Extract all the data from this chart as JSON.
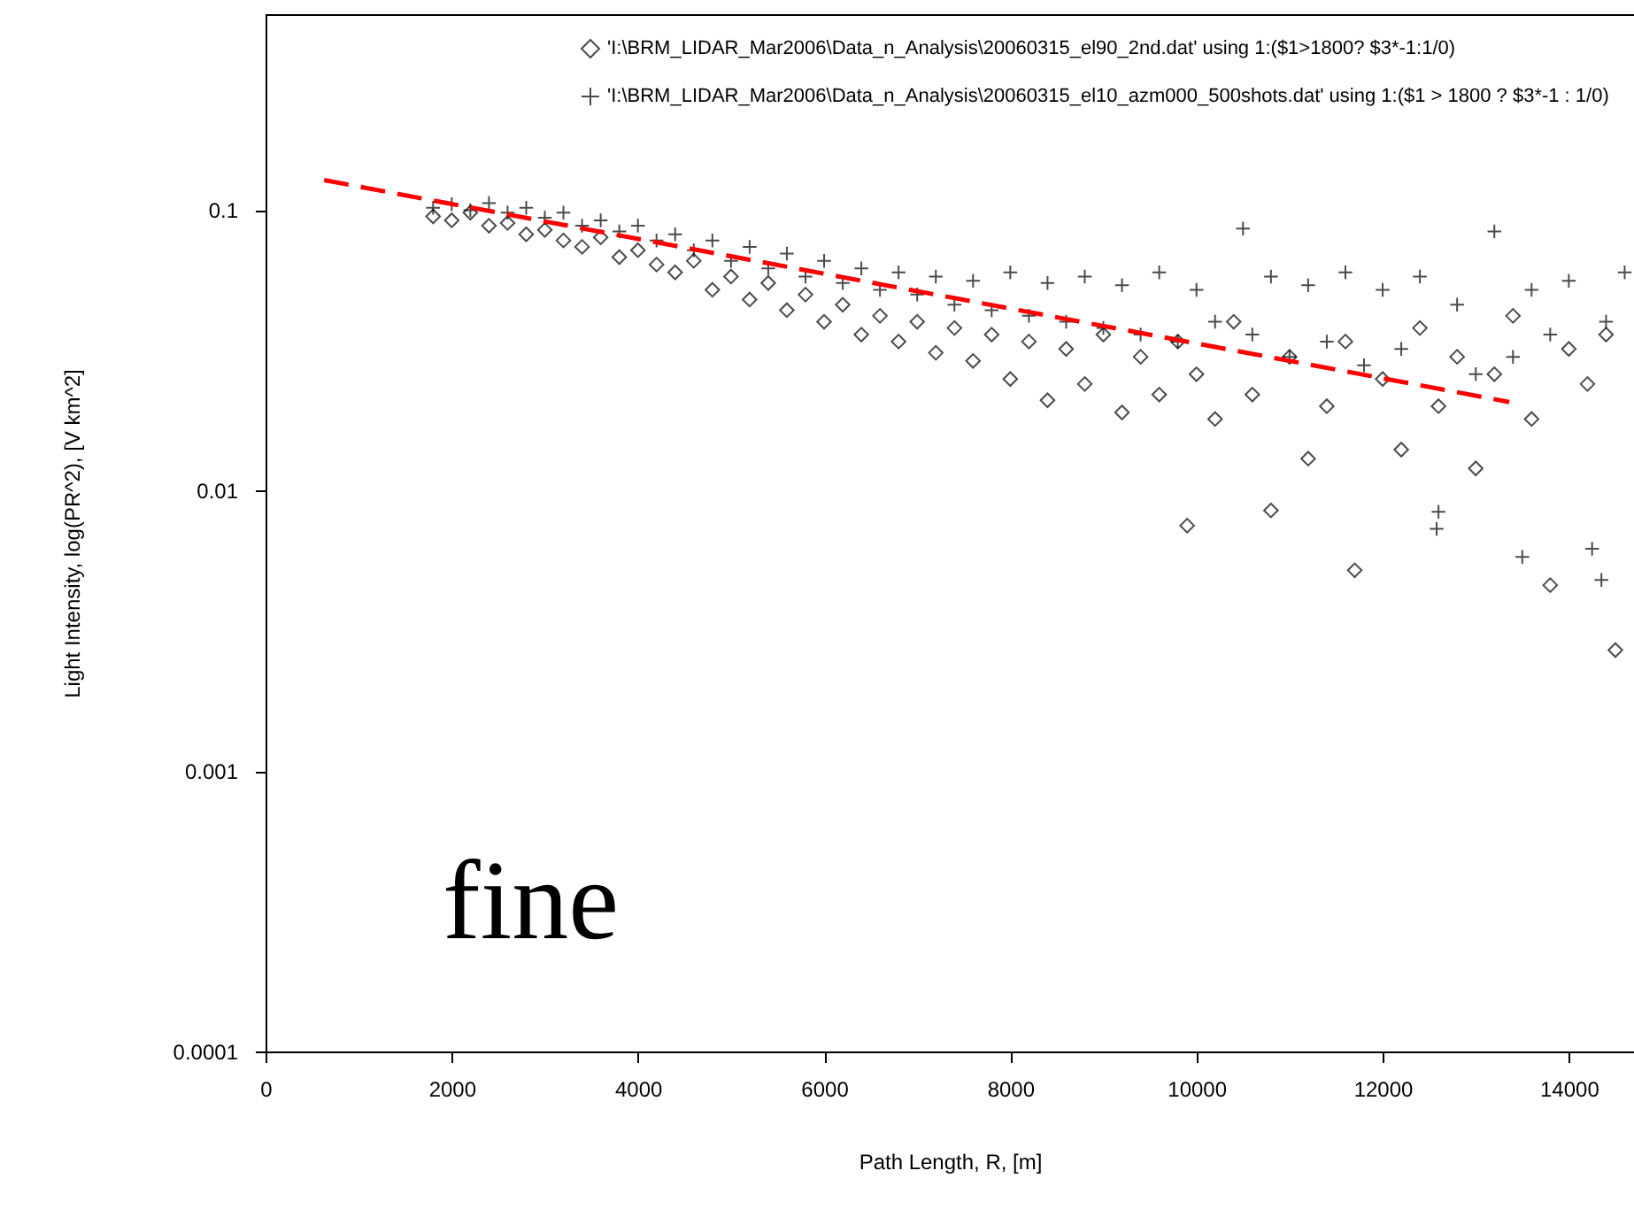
{
  "chart_data": {
    "type": "scatter",
    "xlabel": "Path Length,   R,    [m]",
    "ylabel": "Light Intensity, log(PR^2),       [V km^2]",
    "log": "y",
    "grid": false,
    "legend": "top right",
    "xlim": [
      0,
      14700
    ],
    "xticks": [
      0,
      2000,
      4000,
      6000,
      8000,
      10000,
      12000,
      14000
    ],
    "ylim": [
      0.0001,
      0.5
    ],
    "yticks": [
      0.0001,
      0.001,
      0.01,
      0.1
    ],
    "annotations": [
      "fine"
    ],
    "series": [
      {
        "name": "'I:\\BRM_LIDAR_Mar2006\\Data_n_Analysis\\20060315_el90_2nd.dat' using 1:($1>1800? $3*-1:1/0)",
        "color": "#000000",
        "marker": "diamond",
        "x": [
          1800,
          2000,
          2200,
          2400,
          2600,
          2800,
          3000,
          3200,
          3400,
          3600,
          3800,
          4000,
          4200,
          4400,
          4600,
          4800,
          5000,
          5200,
          5400,
          5600,
          5800,
          6000,
          6200,
          6400,
          6600,
          6800,
          7000,
          7200,
          7400,
          7600,
          7800,
          8000,
          8200,
          8400,
          8600,
          8800,
          9000,
          9200,
          9400,
          9600,
          9800,
          9900,
          10000,
          10200,
          10400,
          10600,
          10800,
          11000,
          11200,
          11400,
          11600,
          11700,
          12000,
          12200,
          12400,
          12600,
          12800,
          13000,
          13200,
          13400,
          13600,
          13800,
          14000,
          14200,
          14400,
          14500
        ],
        "values": [
          0.095,
          0.092,
          0.098,
          0.088,
          0.09,
          0.082,
          0.085,
          0.078,
          0.074,
          0.08,
          0.068,
          0.072,
          0.064,
          0.06,
          0.066,
          0.052,
          0.058,
          0.048,
          0.055,
          0.044,
          0.05,
          0.04,
          0.046,
          0.036,
          0.042,
          0.034,
          0.04,
          0.031,
          0.038,
          0.029,
          0.036,
          0.025,
          0.034,
          0.021,
          0.032,
          0.024,
          0.036,
          0.019,
          0.03,
          0.022,
          0.034,
          0.0075,
          0.026,
          0.018,
          0.04,
          0.022,
          0.0085,
          0.03,
          0.013,
          0.02,
          0.034,
          0.0052,
          0.025,
          0.014,
          0.038,
          0.02,
          0.03,
          0.012,
          0.026,
          0.042,
          0.018,
          0.0046,
          0.032,
          0.024,
          0.036,
          0.0027
        ]
      },
      {
        "name": "'I:\\BRM_LIDAR_Mar2006\\Data_n_Analysis\\20060315_el10_azm000_500shots.dat' using 1:($1 > 1800 ? $3*-1 : 1/0)",
        "color": "#000000",
        "marker": "cross",
        "x": [
          1800,
          2000,
          2200,
          2400,
          2600,
          2800,
          3000,
          3200,
          3400,
          3600,
          3800,
          4000,
          4200,
          4400,
          4600,
          4800,
          5000,
          5200,
          5400,
          5600,
          5800,
          6000,
          6200,
          6400,
          6600,
          6800,
          7000,
          7200,
          7400,
          7600,
          7800,
          8000,
          8200,
          8400,
          8600,
          8800,
          9000,
          9200,
          9400,
          9600,
          9800,
          10000,
          10200,
          10500,
          10600,
          10800,
          11000,
          11200,
          11400,
          11600,
          11800,
          12000,
          12200,
          12400,
          12580,
          12600,
          12800,
          13000,
          13200,
          13400,
          13500,
          13600,
          13800,
          14000,
          14250,
          14350,
          14400,
          14600
        ],
        "values": [
          0.102,
          0.105,
          0.1,
          0.106,
          0.098,
          0.102,
          0.094,
          0.098,
          0.088,
          0.092,
          0.084,
          0.088,
          0.078,
          0.082,
          0.072,
          0.078,
          0.066,
          0.074,
          0.062,
          0.07,
          0.058,
          0.066,
          0.055,
          0.062,
          0.052,
          0.06,
          0.05,
          0.058,
          0.046,
          0.056,
          0.044,
          0.06,
          0.042,
          0.055,
          0.04,
          0.058,
          0.038,
          0.054,
          0.036,
          0.06,
          0.034,
          0.052,
          0.04,
          0.086,
          0.036,
          0.058,
          0.03,
          0.054,
          0.034,
          0.06,
          0.028,
          0.052,
          0.032,
          0.058,
          0.0073,
          0.0084,
          0.046,
          0.026,
          0.084,
          0.03,
          0.0058,
          0.052,
          0.036,
          0.056,
          0.0062,
          0.0048,
          0.04,
          0.06
        ]
      },
      {
        "type": "line",
        "color": "#ff0000",
        "line_style": "dashed",
        "marker": "none",
        "x": [
          630,
          13360
        ],
        "values": [
          0.128,
          0.0207
        ]
      }
    ]
  }
}
